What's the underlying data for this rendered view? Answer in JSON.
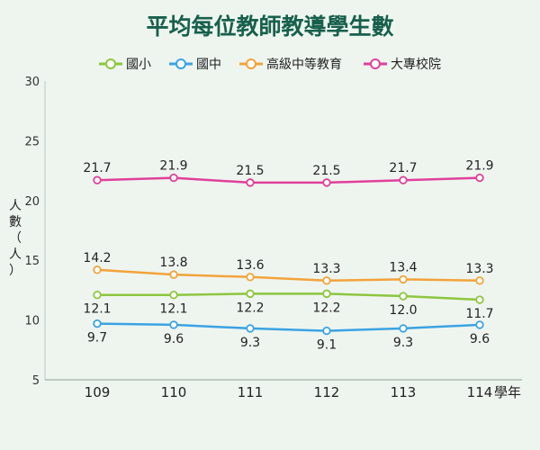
{
  "chart_data": {
    "type": "line",
    "title": "平均每位教師教導學生數",
    "ylabel": "人數（人）",
    "xlabel_suffix": "學年",
    "x": [
      "109",
      "110",
      "111",
      "112",
      "113",
      "114"
    ],
    "ylim": [
      5,
      30
    ],
    "yticks": [
      5,
      10,
      15,
      20,
      25,
      30
    ],
    "grid": false,
    "legend_position": "top-center",
    "series": [
      {
        "name": "國小",
        "color": "#8dc63f",
        "values": [
          12.1,
          12.1,
          12.2,
          12.2,
          12.0,
          11.7
        ],
        "label_position": "below"
      },
      {
        "name": "國中",
        "color": "#3aa3e3",
        "values": [
          9.7,
          9.6,
          9.3,
          9.1,
          9.3,
          9.6
        ],
        "label_position": "below"
      },
      {
        "name": "高級中等教育",
        "color": "#f2a33a",
        "values": [
          14.2,
          13.8,
          13.6,
          13.3,
          13.4,
          13.3
        ],
        "label_position": "above"
      },
      {
        "name": "大專校院",
        "color": "#e0409a",
        "values": [
          21.7,
          21.9,
          21.5,
          21.5,
          21.7,
          21.9
        ],
        "label_position": "above"
      }
    ]
  }
}
